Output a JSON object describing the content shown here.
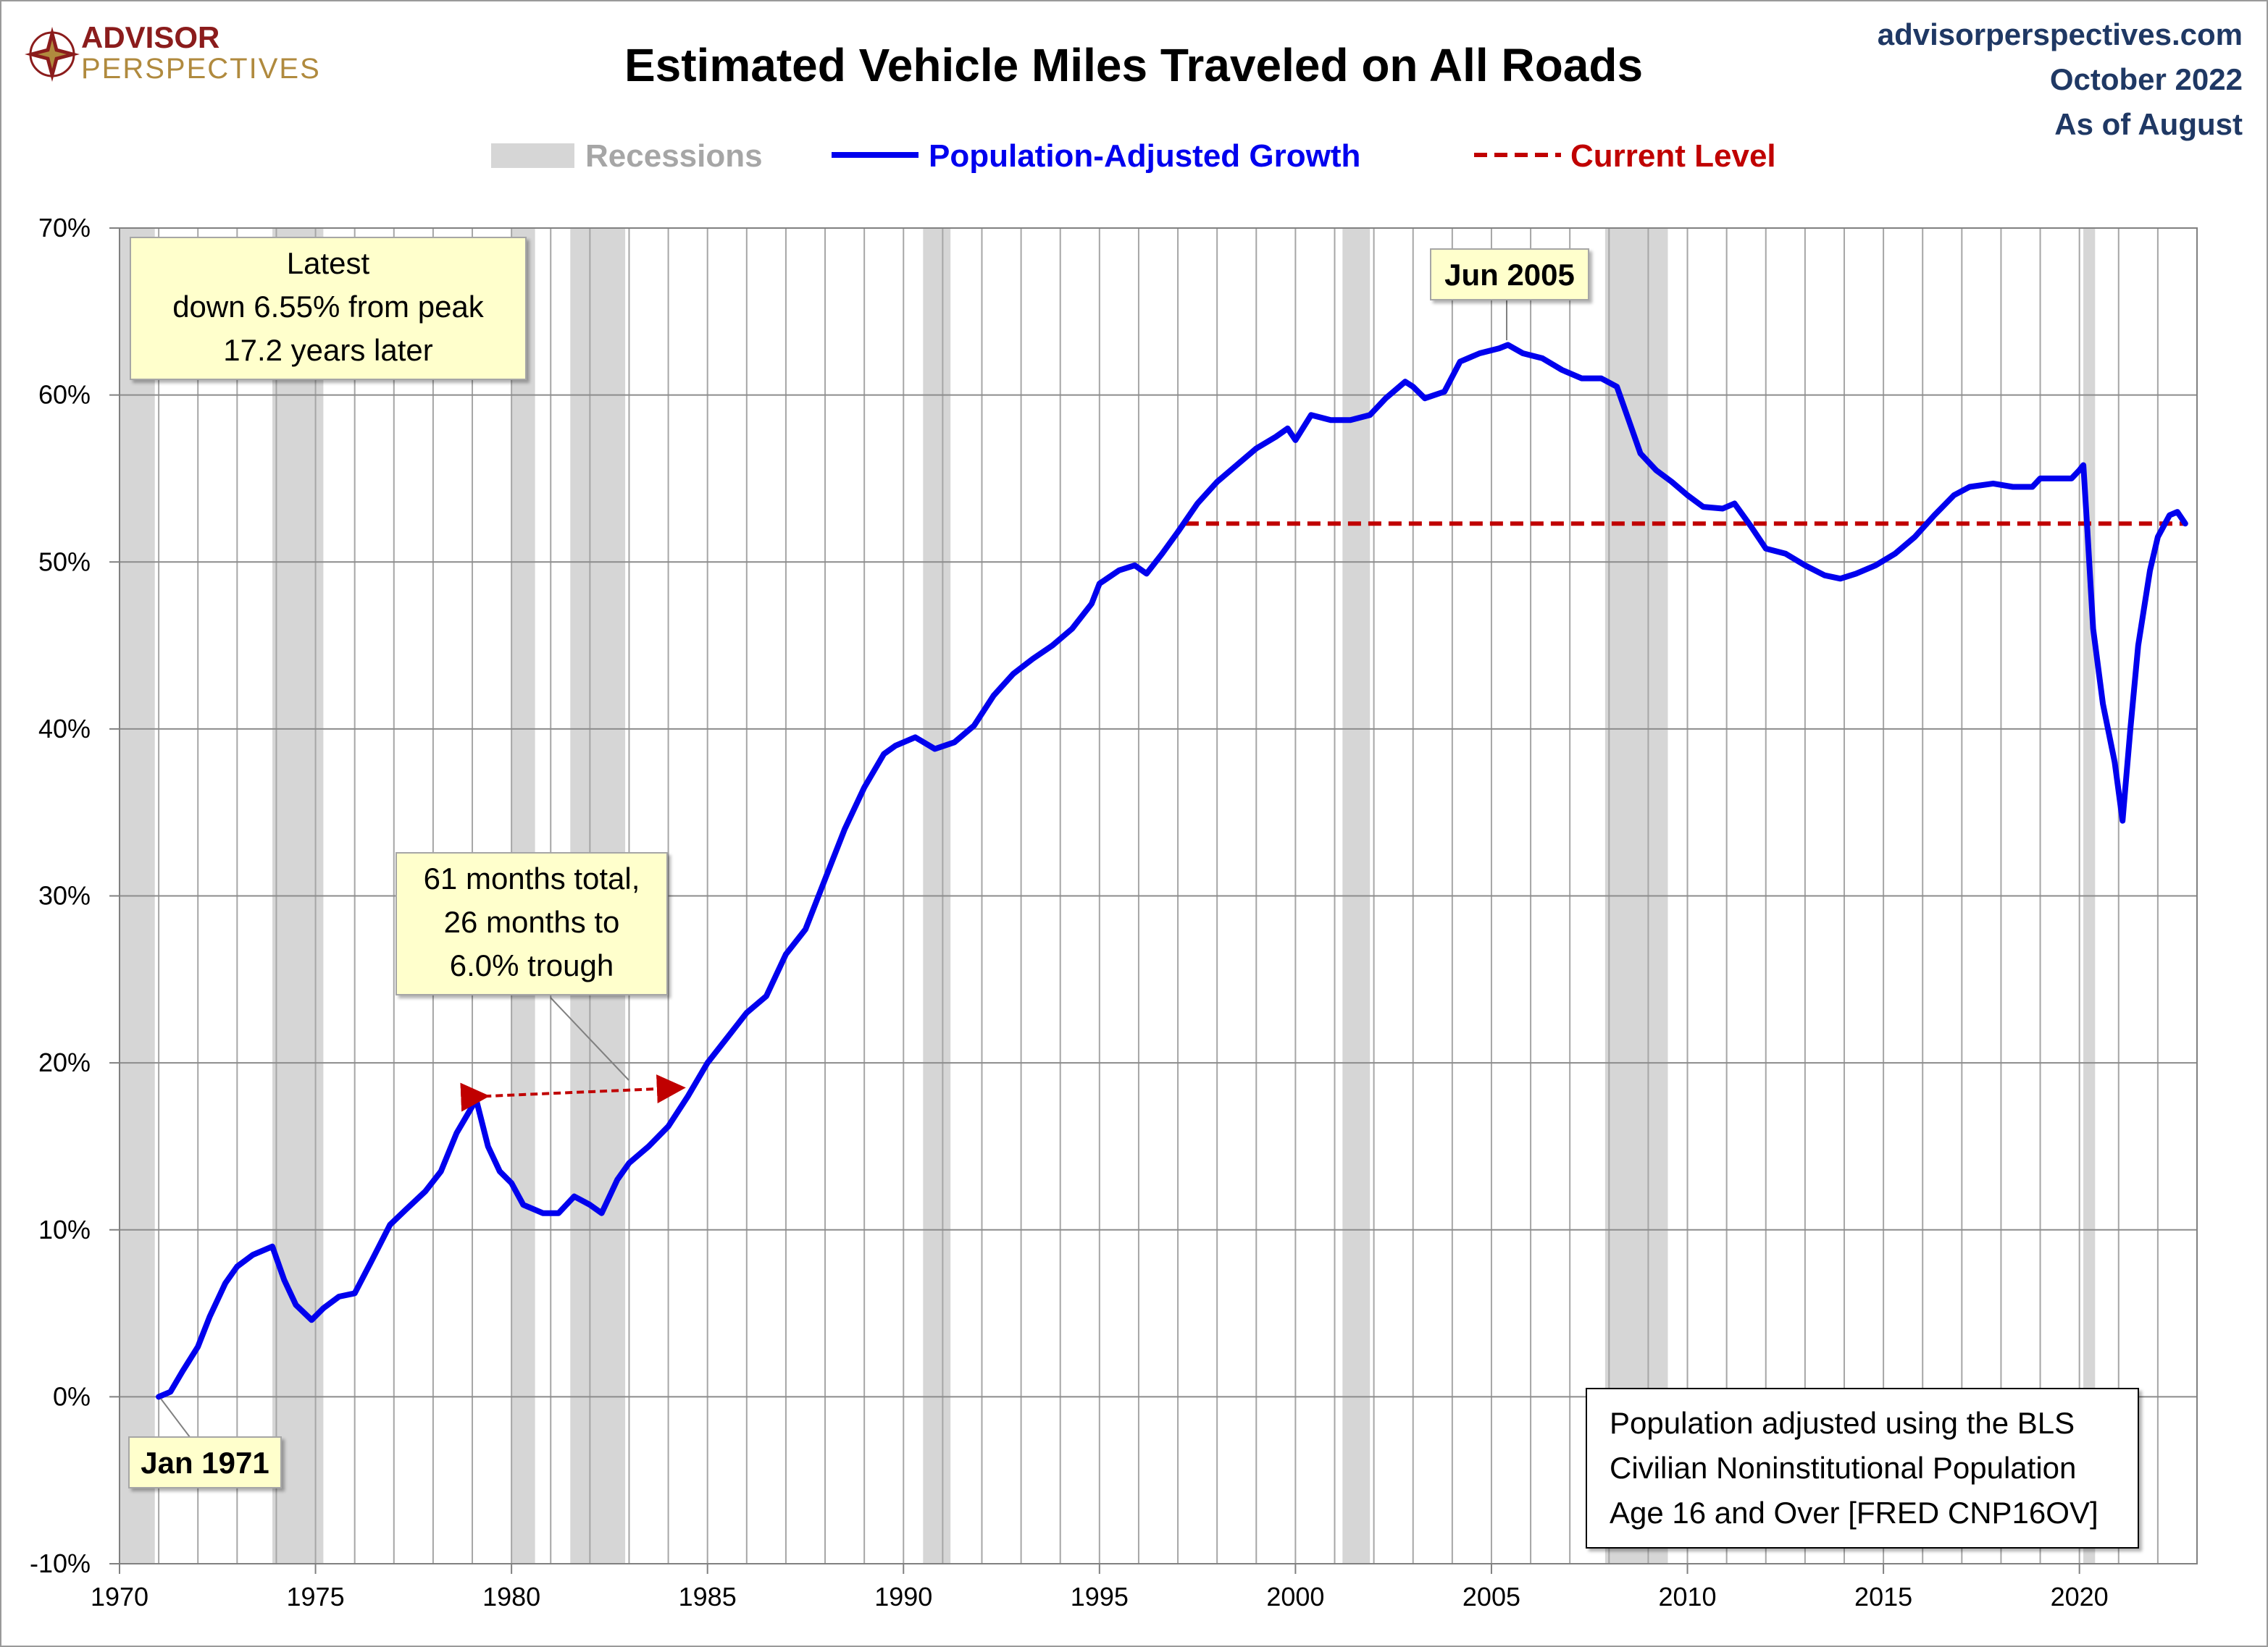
{
  "branding": {
    "logo_line1": "ADVISOR",
    "logo_line2": "PERSPECTIVES",
    "site": "advisorperspectives.com",
    "date": "October 2022",
    "as_of": "As of August"
  },
  "colors": {
    "series": "#0000ee",
    "current_level": "#c00000",
    "recession": "#d6d6d6",
    "callout_fill": "#ffffcc",
    "grid": "#a6a6a6"
  },
  "annotations": {
    "latest": [
      "Latest",
      "down 6.55% from peak",
      "17.2 years later"
    ],
    "peak_label": "Jun 2005",
    "recession_note": [
      "61 months total,",
      "26 months to",
      "6.0% trough"
    ],
    "start_label": "Jan 1971",
    "footnote": [
      "Population adjusted using the BLS",
      "Civilian Noninstitutional Population",
      "Age 16 and Over  [FRED CNP16OV]"
    ]
  },
  "chart_data": {
    "type": "line",
    "title": "Estimated Vehicle Miles Traveled on All Roads",
    "xlabel": "",
    "ylabel": "",
    "xlim": [
      1970,
      2023
    ],
    "ylim": [
      -10,
      70
    ],
    "x_ticks": [
      1970,
      1975,
      1980,
      1985,
      1990,
      1995,
      2000,
      2005,
      2010,
      2015,
      2020
    ],
    "y_ticks": [
      -10,
      0,
      10,
      20,
      30,
      40,
      50,
      60,
      70
    ],
    "y_tick_labels": [
      "-10%",
      "0%",
      "10%",
      "20%",
      "30%",
      "40%",
      "50%",
      "60%",
      "70%"
    ],
    "grid": true,
    "legend": {
      "placement": "top",
      "entries": [
        {
          "label": "Recessions",
          "kind": "band"
        },
        {
          "label": "Population-Adjusted Growth",
          "kind": "line"
        },
        {
          "label": "Current Level",
          "kind": "dashed"
        }
      ]
    },
    "recessions": [
      [
        1970.0,
        1970.9
      ],
      [
        1973.9,
        1975.2
      ],
      [
        1980.0,
        1980.6
      ],
      [
        1981.5,
        1982.9
      ],
      [
        1990.5,
        1991.2
      ],
      [
        2001.2,
        2001.9
      ],
      [
        2007.9,
        2009.5
      ],
      [
        2020.1,
        2020.4
      ]
    ],
    "current_level": {
      "value": 52.3,
      "x_start": 1997.2,
      "x_end": 2022.7
    },
    "peak": {
      "x": 2005.42,
      "y": 63.0,
      "label": "Jun 2005"
    },
    "trough_arrow": {
      "x_start": 1979.3,
      "y_start": 18.0,
      "x_end": 1984.3,
      "y_end": 18.5
    },
    "series": [
      {
        "name": "Population-Adjusted Growth",
        "points": [
          [
            1971.0,
            0.0
          ],
          [
            1971.3,
            0.3
          ],
          [
            1971.6,
            1.5
          ],
          [
            1972.0,
            3.0
          ],
          [
            1972.3,
            4.8
          ],
          [
            1972.7,
            6.8
          ],
          [
            1973.0,
            7.8
          ],
          [
            1973.4,
            8.5
          ],
          [
            1973.9,
            9.0
          ],
          [
            1974.2,
            7.0
          ],
          [
            1974.5,
            5.5
          ],
          [
            1974.9,
            4.6
          ],
          [
            1975.2,
            5.3
          ],
          [
            1975.6,
            6.0
          ],
          [
            1976.0,
            6.2
          ],
          [
            1976.4,
            8.0
          ],
          [
            1976.9,
            10.3
          ],
          [
            1977.3,
            11.2
          ],
          [
            1977.8,
            12.3
          ],
          [
            1978.2,
            13.5
          ],
          [
            1978.6,
            15.8
          ],
          [
            1978.9,
            17.0
          ],
          [
            1979.1,
            17.8
          ],
          [
            1979.4,
            15.0
          ],
          [
            1979.7,
            13.5
          ],
          [
            1980.0,
            12.8
          ],
          [
            1980.3,
            11.5
          ],
          [
            1980.8,
            11.0
          ],
          [
            1981.2,
            11.0
          ],
          [
            1981.6,
            12.0
          ],
          [
            1982.0,
            11.5
          ],
          [
            1982.3,
            11.0
          ],
          [
            1982.7,
            13.0
          ],
          [
            1983.0,
            14.0
          ],
          [
            1983.5,
            15.0
          ],
          [
            1984.0,
            16.2
          ],
          [
            1984.5,
            18.0
          ],
          [
            1985.0,
            20.0
          ],
          [
            1985.5,
            21.5
          ],
          [
            1986.0,
            23.0
          ],
          [
            1986.5,
            24.0
          ],
          [
            1987.0,
            26.5
          ],
          [
            1987.5,
            28.0
          ],
          [
            1988.0,
            31.0
          ],
          [
            1988.5,
            34.0
          ],
          [
            1989.0,
            36.5
          ],
          [
            1989.5,
            38.5
          ],
          [
            1989.8,
            39.0
          ],
          [
            1990.3,
            39.5
          ],
          [
            1990.8,
            38.8
          ],
          [
            1991.3,
            39.2
          ],
          [
            1991.8,
            40.2
          ],
          [
            1992.3,
            42.0
          ],
          [
            1992.8,
            43.3
          ],
          [
            1993.3,
            44.2
          ],
          [
            1993.8,
            45.0
          ],
          [
            1994.3,
            46.0
          ],
          [
            1994.8,
            47.5
          ],
          [
            1995.0,
            48.7
          ],
          [
            1995.5,
            49.5
          ],
          [
            1995.9,
            49.8
          ],
          [
            1996.2,
            49.3
          ],
          [
            1996.6,
            50.5
          ],
          [
            1997.0,
            51.8
          ],
          [
            1997.5,
            53.5
          ],
          [
            1998.0,
            54.8
          ],
          [
            1998.5,
            55.8
          ],
          [
            1999.0,
            56.8
          ],
          [
            1999.5,
            57.5
          ],
          [
            1999.8,
            58.0
          ],
          [
            2000.0,
            57.3
          ],
          [
            2000.4,
            58.8
          ],
          [
            2000.9,
            58.5
          ],
          [
            2001.4,
            58.5
          ],
          [
            2001.9,
            58.8
          ],
          [
            2002.3,
            59.8
          ],
          [
            2002.8,
            60.8
          ],
          [
            2003.0,
            60.5
          ],
          [
            2003.3,
            59.8
          ],
          [
            2003.8,
            60.2
          ],
          [
            2004.2,
            62.0
          ],
          [
            2004.7,
            62.5
          ],
          [
            2005.2,
            62.8
          ],
          [
            2005.42,
            63.0
          ],
          [
            2005.8,
            62.5
          ],
          [
            2006.3,
            62.2
          ],
          [
            2006.8,
            61.5
          ],
          [
            2007.3,
            61.0
          ],
          [
            2007.8,
            61.0
          ],
          [
            2008.2,
            60.5
          ],
          [
            2008.5,
            58.5
          ],
          [
            2008.8,
            56.5
          ],
          [
            2009.2,
            55.5
          ],
          [
            2009.6,
            54.8
          ],
          [
            2010.0,
            54.0
          ],
          [
            2010.4,
            53.3
          ],
          [
            2010.9,
            53.2
          ],
          [
            2011.2,
            53.5
          ],
          [
            2011.6,
            52.2
          ],
          [
            2012.0,
            50.8
          ],
          [
            2012.5,
            50.5
          ],
          [
            2013.0,
            49.8
          ],
          [
            2013.5,
            49.2
          ],
          [
            2013.9,
            49.0
          ],
          [
            2014.3,
            49.3
          ],
          [
            2014.8,
            49.8
          ],
          [
            2015.3,
            50.5
          ],
          [
            2015.8,
            51.5
          ],
          [
            2016.3,
            52.8
          ],
          [
            2016.8,
            54.0
          ],
          [
            2017.2,
            54.5
          ],
          [
            2017.8,
            54.7
          ],
          [
            2018.3,
            54.5
          ],
          [
            2018.8,
            54.5
          ],
          [
            2019.0,
            55.0
          ],
          [
            2019.4,
            55.0
          ],
          [
            2019.8,
            55.0
          ],
          [
            2020.0,
            55.5
          ],
          [
            2020.1,
            55.8
          ],
          [
            2020.2,
            52.0
          ],
          [
            2020.35,
            46.0
          ],
          [
            2020.6,
            41.5
          ],
          [
            2020.9,
            38.0
          ],
          [
            2021.1,
            34.5
          ],
          [
            2021.3,
            40.0
          ],
          [
            2021.5,
            45.0
          ],
          [
            2021.8,
            49.5
          ],
          [
            2022.0,
            51.5
          ],
          [
            2022.3,
            52.8
          ],
          [
            2022.5,
            53.0
          ],
          [
            2022.7,
            52.3
          ]
        ]
      }
    ]
  }
}
